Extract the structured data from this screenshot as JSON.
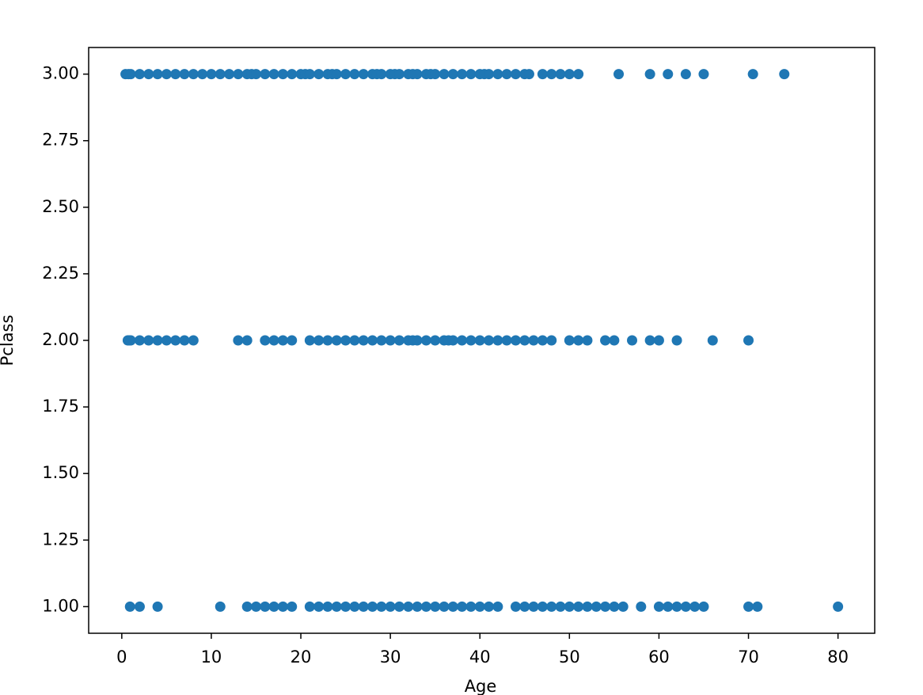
{
  "chart_data": {
    "type": "scatter",
    "x_label": "Age",
    "y_label": "Pclass",
    "color": "#1f77b4",
    "x": [
      0.42,
      0.75,
      1,
      2,
      3,
      4,
      5,
      6,
      7,
      8,
      9,
      10,
      11,
      12,
      13,
      14,
      14.5,
      15,
      16,
      17,
      18,
      19,
      20,
      20.5,
      21,
      22,
      23,
      23.5,
      24,
      25,
      26,
      27,
      28,
      28.5,
      29,
      30,
      30.5,
      31,
      32,
      32.5,
      33,
      34,
      34.5,
      35,
      36,
      37,
      38,
      39,
      40,
      40.5,
      41,
      42,
      43,
      44,
      45,
      45.5,
      47,
      48,
      49,
      50,
      51,
      55.5,
      59,
      61,
      63,
      65,
      70.5,
      74,
      0.67,
      0.83,
      1,
      2,
      3,
      4,
      5,
      6,
      7,
      8,
      13,
      14,
      16,
      17,
      18,
      19,
      21,
      22,
      23,
      24,
      25,
      26,
      27,
      28,
      29,
      30,
      31,
      32,
      32.5,
      33,
      34,
      35,
      36,
      36.5,
      37,
      38,
      39,
      40,
      41,
      42,
      43,
      44,
      45,
      46,
      47,
      48,
      50,
      51,
      52,
      54,
      55,
      57,
      59,
      60,
      62,
      66,
      70,
      0.92,
      2,
      4,
      11,
      14,
      15,
      16,
      17,
      18,
      19,
      21,
      22,
      23,
      24,
      25,
      26,
      27,
      28,
      29,
      30,
      31,
      32,
      33,
      34,
      35,
      36,
      37,
      38,
      39,
      40,
      41,
      42,
      44,
      45,
      46,
      47,
      48,
      49,
      50,
      51,
      52,
      53,
      54,
      55,
      56,
      58,
      60,
      61,
      62,
      63,
      64,
      65,
      70,
      71,
      80
    ],
    "values": [
      3,
      3,
      3,
      3,
      3,
      3,
      3,
      3,
      3,
      3,
      3,
      3,
      3,
      3,
      3,
      3,
      3,
      3,
      3,
      3,
      3,
      3,
      3,
      3,
      3,
      3,
      3,
      3,
      3,
      3,
      3,
      3,
      3,
      3,
      3,
      3,
      3,
      3,
      3,
      3,
      3,
      3,
      3,
      3,
      3,
      3,
      3,
      3,
      3,
      3,
      3,
      3,
      3,
      3,
      3,
      3,
      3,
      3,
      3,
      3,
      3,
      3,
      3,
      3,
      3,
      3,
      3,
      3,
      2,
      2,
      2,
      2,
      2,
      2,
      2,
      2,
      2,
      2,
      2,
      2,
      2,
      2,
      2,
      2,
      2,
      2,
      2,
      2,
      2,
      2,
      2,
      2,
      2,
      2,
      2,
      2,
      2,
      2,
      2,
      2,
      2,
      2,
      2,
      2,
      2,
      2,
      2,
      2,
      2,
      2,
      2,
      2,
      2,
      2,
      2,
      2,
      2,
      2,
      2,
      2,
      2,
      2,
      2,
      2,
      2,
      1,
      1,
      1,
      1,
      1,
      1,
      1,
      1,
      1,
      1,
      1,
      1,
      1,
      1,
      1,
      1,
      1,
      1,
      1,
      1,
      1,
      1,
      1,
      1,
      1,
      1,
      1,
      1,
      1,
      1,
      1,
      1,
      1,
      1,
      1,
      1,
      1,
      1,
      1,
      1,
      1,
      1,
      1,
      1,
      1,
      1,
      1,
      1,
      1,
      1,
      1,
      1,
      1,
      1,
      1
    ],
    "xlim": [
      -3.7,
      84.1
    ],
    "ylim": [
      0.9,
      3.1
    ],
    "xticks": [
      0,
      10,
      20,
      30,
      40,
      50,
      60,
      70,
      80
    ],
    "yticks": [
      {
        "value": 1,
        "label": "1.00"
      },
      {
        "value": 1.25,
        "label": "1.25"
      },
      {
        "value": 1.5,
        "label": "1.50"
      },
      {
        "value": 1.75,
        "label": "1.75"
      },
      {
        "value": 2,
        "label": "2.00"
      },
      {
        "value": 2.25,
        "label": "2.25"
      },
      {
        "value": 2.5,
        "label": "2.50"
      },
      {
        "value": 2.75,
        "label": "2.75"
      },
      {
        "value": 3,
        "label": "3.00"
      }
    ]
  }
}
